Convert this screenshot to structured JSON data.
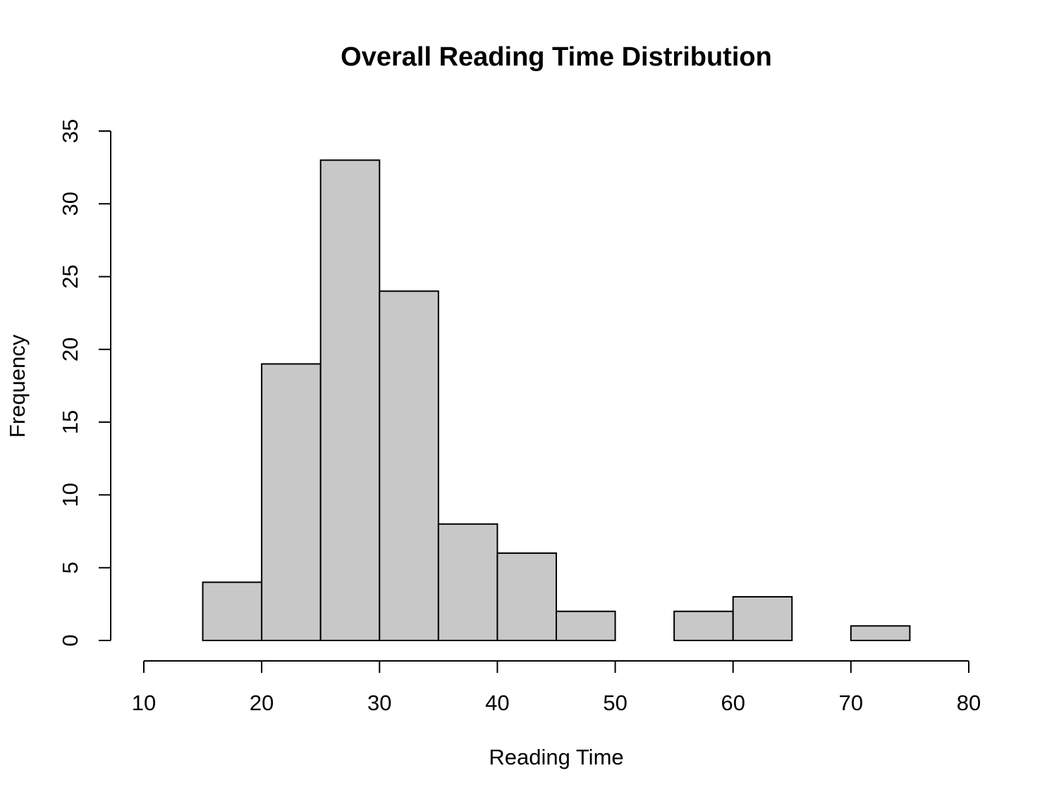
{
  "chart_data": {
    "type": "bar",
    "title": "Overall Reading Time Distribution",
    "xlabel": "Reading Time",
    "ylabel": "Frequency",
    "bins": [
      {
        "start": 15,
        "end": 20,
        "count": 4
      },
      {
        "start": 20,
        "end": 25,
        "count": 19
      },
      {
        "start": 25,
        "end": 30,
        "count": 33
      },
      {
        "start": 30,
        "end": 35,
        "count": 24
      },
      {
        "start": 35,
        "end": 40,
        "count": 8
      },
      {
        "start": 40,
        "end": 45,
        "count": 6
      },
      {
        "start": 45,
        "end": 50,
        "count": 2
      },
      {
        "start": 50,
        "end": 55,
        "count": 0
      },
      {
        "start": 55,
        "end": 60,
        "count": 2
      },
      {
        "start": 60,
        "end": 65,
        "count": 3
      },
      {
        "start": 65,
        "end": 70,
        "count": 0
      },
      {
        "start": 70,
        "end": 75,
        "count": 1
      }
    ],
    "xlim": [
      10,
      80
    ],
    "ylim": [
      0,
      35
    ],
    "x_ticks": [
      "10",
      "20",
      "30",
      "40",
      "50",
      "60",
      "70",
      "80"
    ],
    "y_ticks": [
      "0",
      "5",
      "10",
      "15",
      "20",
      "25",
      "30",
      "35"
    ],
    "bar_fill": "#c8c8c8",
    "bar_stroke": "#000000",
    "grid": false,
    "legend": "none"
  }
}
